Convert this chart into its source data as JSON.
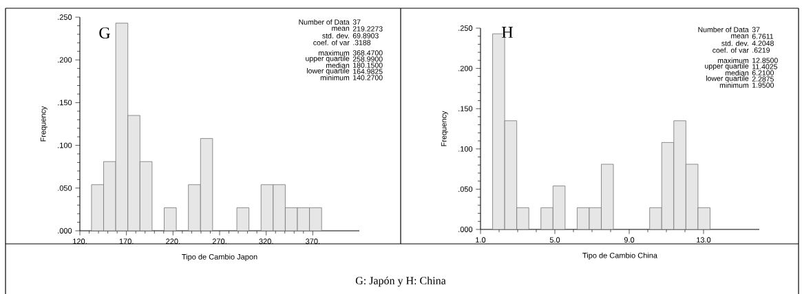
{
  "chart_data": [
    {
      "type": "histogram",
      "color": "#e6e6e6",
      "bins": [
        132.5,
        145.5,
        158.5,
        171.5,
        184.5,
        197.5,
        210.5,
        223.5,
        236.5,
        249.5,
        262.5,
        275.5,
        288.5,
        301.5,
        314.5,
        327.5,
        340.5,
        353.5,
        366.5,
        379.5
      ],
      "values": [
        0.054,
        0.081,
        0.243,
        0.135,
        0.081,
        0,
        0.027,
        0,
        0.054,
        0.108,
        0,
        0,
        0.027,
        0,
        0.054,
        0.054,
        0.027,
        0.027,
        0.027
      ],
      "xlabel": "Tipo de Cambio Japon",
      "ylabel": "Frequency",
      "xlim": [
        120,
        420
      ],
      "ylim": [
        0,
        0.25
      ],
      "xticks": [
        {
          "value": 120,
          "label": "120."
        },
        {
          "value": 170,
          "label": "170."
        },
        {
          "value": 220,
          "label": "220."
        },
        {
          "value": 270,
          "label": "270."
        },
        {
          "value": 320,
          "label": "320."
        },
        {
          "value": 370,
          "label": "370."
        }
      ],
      "yticks": [
        {
          "value": 0,
          "label": ".000"
        },
        {
          "value": 0.05,
          "label": ".050"
        },
        {
          "value": 0.1,
          "label": ".100"
        },
        {
          "value": 0.15,
          "label": ".150"
        },
        {
          "value": 0.2,
          "label": ".200"
        },
        {
          "value": 0.25,
          "label": ".250"
        }
      ],
      "grid": false,
      "annotations": [
        "G",
        "Number of Data",
        "37",
        "mean",
        "219.2273",
        "std. dev.",
        "69.8903",
        "coef. of var",
        ".3188",
        "maximum",
        "368.4700",
        "upper quartile",
        "258.9900",
        "median",
        "180.1500",
        "lower quartile",
        "164.9825",
        "minimum",
        "140.2700",
        "G: Japón y H: China"
      ]
    },
    {
      "type": "histogram",
      "color": "#e6e6e6",
      "bins": [
        1.65,
        2.3,
        2.95,
        3.6,
        4.25,
        4.9,
        5.55,
        6.2,
        6.85,
        7.5,
        8.15,
        8.8,
        9.45,
        10.1,
        10.75,
        11.4,
        12.05,
        12.7,
        13.35
      ],
      "values": [
        0.243,
        0.135,
        0.027,
        0,
        0.027,
        0.054,
        0,
        0.027,
        0.027,
        0.081,
        0,
        0,
        0,
        0.027,
        0.108,
        0.135,
        0.081,
        0.027
      ],
      "xlabel": "Tipo de Cambio China",
      "ylabel": "Frequency",
      "xlim": [
        1,
        16
      ],
      "ylim": [
        0,
        0.25
      ],
      "xticks": [
        {
          "value": 1,
          "label": "1.0"
        },
        {
          "value": 5,
          "label": "5.0"
        },
        {
          "value": 9,
          "label": "9.0"
        },
        {
          "value": 13,
          "label": "13.0"
        }
      ],
      "yticks": [
        {
          "value": 0,
          "label": ".000"
        },
        {
          "value": 0.05,
          "label": ".050"
        },
        {
          "value": 0.1,
          "label": ".100"
        },
        {
          "value": 0.15,
          "label": ".150"
        },
        {
          "value": 0.2,
          "label": ".200"
        },
        {
          "value": 0.25,
          "label": ".250"
        }
      ],
      "grid": false,
      "annotations": [
        "H",
        "Number of Data",
        "37",
        "mean",
        "6.7611",
        "std. dev.",
        "4.2048",
        "coef. of var",
        ".6219",
        "maximum",
        "12.8500",
        "upper quartile",
        "11.4025",
        "median",
        "6.2100",
        "lower quartile",
        "2.2875",
        "minimum",
        "1.9500"
      ]
    }
  ]
}
